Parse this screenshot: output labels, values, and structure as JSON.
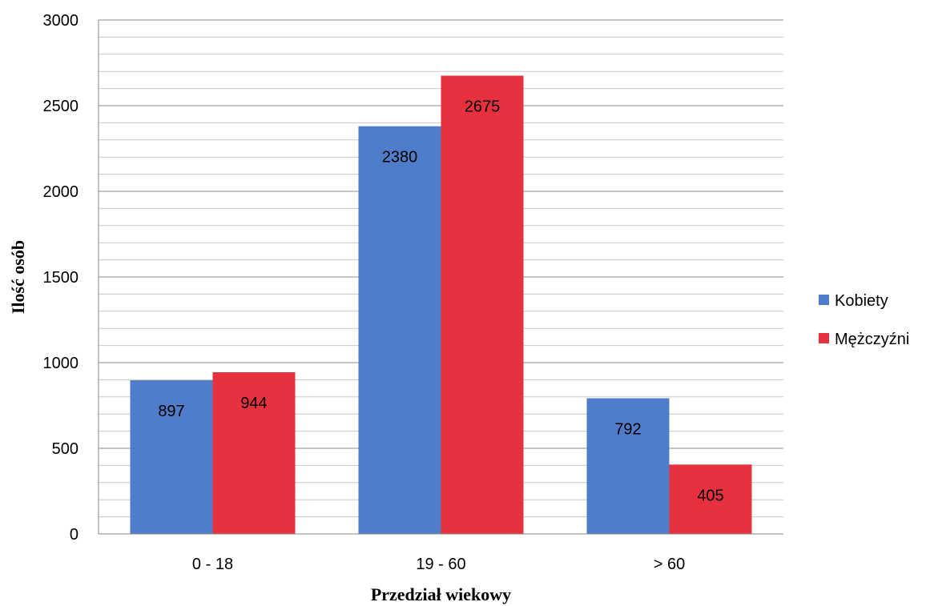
{
  "chart_data": {
    "type": "bar",
    "title": "",
    "xlabel": "Przedział wiekowy",
    "ylabel": "Ilość osób",
    "categories": [
      "0 - 18",
      "19 - 60",
      "> 60"
    ],
    "series": [
      {
        "name": "Kobiety",
        "values": [
          897,
          2380,
          792
        ],
        "color": "#4F7DC9"
      },
      {
        "name": "Mężczyźni",
        "values": [
          944,
          2675,
          405
        ],
        "color": "#E8313E"
      }
    ],
    "ylim": [
      0,
      3000
    ],
    "yticks": [
      0,
      500,
      1000,
      1500,
      2000,
      2500,
      3000
    ],
    "grid": true,
    "legend_position": "right"
  }
}
